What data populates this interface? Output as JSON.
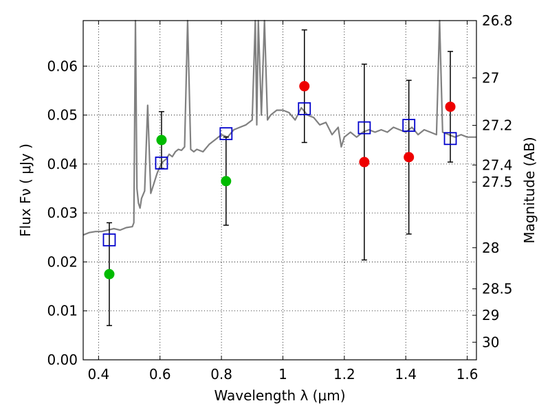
{
  "chart_data": {
    "type": "scatter",
    "xlabel": "Wavelength  λ (μm)",
    "ylabel": "Flux  Fν  ( μJy )",
    "ylabel_right": "Magnitude (AB)",
    "xlim": [
      0.35,
      1.63
    ],
    "ylim": [
      0.0,
      0.0693
    ],
    "x_ticks": [
      0.4,
      0.6,
      0.8,
      1.0,
      1.2,
      1.4,
      1.6
    ],
    "x_tick_labels": [
      "0.4",
      "0.6",
      "0.8",
      "1",
      "1.2",
      "1.4",
      "1.6"
    ],
    "y_ticks": [
      0.0,
      0.01,
      0.02,
      0.03,
      0.04,
      0.05,
      0.06
    ],
    "y_tick_labels": [
      "0.00",
      "0.01",
      "0.02",
      "0.03",
      "0.04",
      "0.05",
      "0.06"
    ],
    "right_ticks": [
      {
        "flux": 0.0693,
        "label": "26.8"
      },
      {
        "flux": 0.0576,
        "label": "27"
      },
      {
        "flux": 0.0479,
        "label": "27.2"
      },
      {
        "flux": 0.0398,
        "label": "27.4"
      },
      {
        "flux": 0.0363,
        "label": "27.5"
      },
      {
        "flux": 0.0229,
        "label": "28"
      },
      {
        "flux": 0.0145,
        "label": "28.5"
      },
      {
        "flux": 0.0091,
        "label": "29"
      },
      {
        "flux": 0.0036,
        "label": "30"
      }
    ],
    "grid": true,
    "colors": {
      "model": "#808080",
      "green": "#00bb00",
      "red": "#ee0000",
      "square": "#0000cc"
    },
    "series": [
      {
        "kind": "model_spectrum",
        "x": [
          0.35,
          0.37,
          0.39,
          0.41,
          0.43,
          0.45,
          0.47,
          0.49,
          0.51,
          0.515,
          0.52,
          0.525,
          0.53,
          0.535,
          0.54,
          0.55,
          0.56,
          0.57,
          0.58,
          0.59,
          0.6,
          0.61,
          0.62,
          0.63,
          0.64,
          0.65,
          0.66,
          0.67,
          0.68,
          0.69,
          0.7,
          0.71,
          0.72,
          0.74,
          0.76,
          0.78,
          0.8,
          0.82,
          0.84,
          0.86,
          0.88,
          0.9,
          0.91,
          0.915,
          0.92,
          0.93,
          0.94,
          0.95,
          0.96,
          0.98,
          1.0,
          1.02,
          1.04,
          1.06,
          1.08,
          1.1,
          1.12,
          1.14,
          1.16,
          1.18,
          1.19,
          1.2,
          1.22,
          1.24,
          1.26,
          1.28,
          1.3,
          1.32,
          1.34,
          1.36,
          1.38,
          1.4,
          1.42,
          1.44,
          1.46,
          1.48,
          1.5,
          1.51,
          1.52,
          1.54,
          1.56,
          1.58,
          1.6,
          1.63
        ],
        "y": [
          0.0255,
          0.026,
          0.0262,
          0.0262,
          0.0265,
          0.0268,
          0.0265,
          0.027,
          0.0272,
          0.028,
          0.0693,
          0.035,
          0.032,
          0.031,
          0.033,
          0.0345,
          0.052,
          0.034,
          0.036,
          0.038,
          0.0395,
          0.0405,
          0.041,
          0.042,
          0.0415,
          0.0425,
          0.043,
          0.0428,
          0.0435,
          0.0693,
          0.043,
          0.0425,
          0.043,
          0.0425,
          0.044,
          0.045,
          0.046,
          0.0455,
          0.047,
          0.0475,
          0.048,
          0.049,
          0.0693,
          0.048,
          0.0693,
          0.05,
          0.0693,
          0.049,
          0.05,
          0.051,
          0.051,
          0.0505,
          0.049,
          0.0515,
          0.05,
          0.0495,
          0.048,
          0.0485,
          0.046,
          0.0475,
          0.0435,
          0.0455,
          0.0465,
          0.0455,
          0.0465,
          0.047,
          0.0465,
          0.047,
          0.0465,
          0.0475,
          0.047,
          0.0465,
          0.0475,
          0.046,
          0.047,
          0.0465,
          0.046,
          0.0693,
          0.0465,
          0.046,
          0.0455,
          0.046,
          0.0455,
          0.0455
        ]
      },
      {
        "kind": "green_points",
        "x": [
          0.435,
          0.605,
          0.815
        ],
        "y": [
          0.0175,
          0.0449,
          0.0365
        ],
        "err": [
          0.0105,
          0.0058,
          0.009
        ]
      },
      {
        "kind": "red_points",
        "x": [
          1.07,
          1.265,
          1.41,
          1.545
        ],
        "y": [
          0.0559,
          0.0404,
          0.0414,
          0.0517
        ],
        "err": [
          0.0115,
          0.02,
          0.0157,
          0.0113
        ]
      },
      {
        "kind": "blue_squares",
        "x": [
          0.435,
          0.605,
          0.815,
          1.07,
          1.265,
          1.41,
          1.545
        ],
        "y": [
          0.0245,
          0.0402,
          0.0462,
          0.0513,
          0.0474,
          0.0479,
          0.0452
        ]
      }
    ]
  }
}
